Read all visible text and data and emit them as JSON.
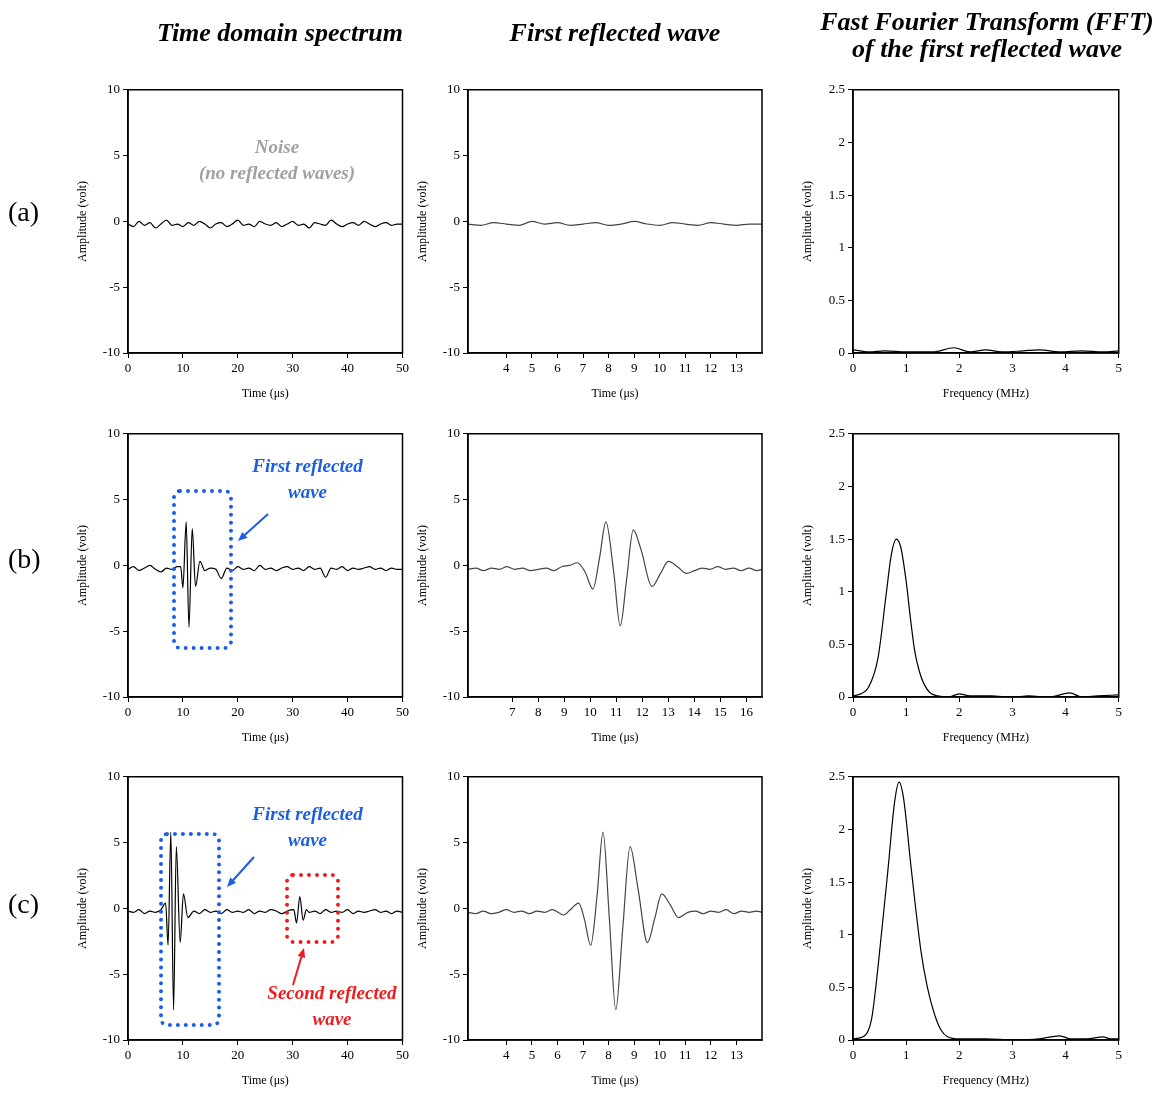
{
  "chart_data": [
    {
      "type": "line",
      "title": "Time domain spectrum",
      "xlabel": "Time (μs)",
      "ylabel": "Amplitude (volt)",
      "color": "#000000",
      "xlim": [
        0,
        50
      ],
      "ylim": [
        -10,
        10
      ],
      "xticks": [
        0,
        10,
        20,
        30,
        40,
        50
      ],
      "yticks": [
        -10,
        -5,
        0,
        5,
        10
      ],
      "annotations": [
        "(a)",
        "Noise",
        "(no reflected waves)"
      ],
      "x": [
        0,
        1,
        2,
        3,
        4,
        5,
        6,
        7,
        8,
        9,
        10,
        11,
        12,
        13,
        14,
        15,
        16,
        17,
        18,
        19,
        20,
        21,
        22,
        23,
        24,
        25,
        26,
        27,
        28,
        29,
        30,
        31,
        32,
        33,
        34,
        35,
        36,
        37,
        38,
        39,
        40,
        41,
        42,
        43,
        44,
        45,
        46,
        47,
        48,
        49,
        50
      ],
      "values": [
        -0.2,
        -0.4,
        0.0,
        -0.3,
        -0.1,
        -0.5,
        -0.2,
        0.1,
        -0.3,
        -0.2,
        -0.4,
        -0.1,
        -0.3,
        0.0,
        -0.2,
        -0.5,
        -0.2,
        -0.1,
        -0.4,
        -0.2,
        0.1,
        -0.3,
        -0.2,
        -0.4,
        0.0,
        -0.2,
        -0.3,
        -0.1,
        -0.4,
        -0.2,
        0.0,
        -0.3,
        -0.2,
        -0.5,
        -0.1,
        -0.2,
        -0.3,
        0.1,
        -0.2,
        -0.4,
        -0.2,
        -0.1,
        -0.3,
        0.0,
        -0.2,
        -0.4,
        -0.2,
        -0.1,
        -0.3,
        -0.2,
        -0.2
      ]
    },
    {
      "type": "line",
      "title": "First reflected wave",
      "xlabel": "Time (μs)",
      "ylabel": "Amplitude (volt)",
      "color": "#444444",
      "xlim": [
        2.5,
        14
      ],
      "ylim": [
        -10,
        10
      ],
      "xticks": [
        4,
        5,
        6,
        7,
        8,
        9,
        10,
        11,
        12,
        13
      ],
      "yticks": [
        -10,
        -5,
        0,
        5,
        10
      ],
      "x": [
        2.5,
        3,
        3.5,
        4,
        4.5,
        5,
        5.5,
        6,
        6.5,
        7,
        7.5,
        8,
        8.5,
        9,
        9.5,
        10,
        10.5,
        11,
        11.5,
        12,
        12.5,
        13,
        13.5,
        14
      ],
      "values": [
        -0.2,
        -0.3,
        -0.1,
        -0.2,
        -0.3,
        0.0,
        -0.2,
        -0.1,
        -0.3,
        -0.2,
        -0.1,
        -0.3,
        -0.2,
        0.0,
        -0.2,
        -0.3,
        -0.1,
        -0.2,
        -0.3,
        -0.1,
        -0.2,
        -0.3,
        -0.2,
        -0.2
      ]
    },
    {
      "type": "line",
      "title": "Fast Fourier Transform (FFT)\nof the first reflected wave",
      "xlabel": "Frequency (MHz)",
      "ylabel": "Amplitude (volt)",
      "color": "#000000",
      "xlim": [
        0,
        5
      ],
      "ylim": [
        0,
        2.5
      ],
      "xticks": [
        0,
        1,
        2,
        3,
        4,
        5
      ],
      "yticks": [
        0,
        0.5,
        1,
        1.5,
        2,
        2.5
      ],
      "x": [
        0,
        0.3,
        0.6,
        1,
        1.5,
        1.9,
        2.2,
        2.5,
        2.8,
        3.2,
        3.5,
        3.9,
        4.3,
        4.7,
        5
      ],
      "values": [
        0.03,
        0.01,
        0.02,
        0.01,
        0.01,
        0.05,
        0.01,
        0.03,
        0.01,
        0.02,
        0.03,
        0.01,
        0.02,
        0.01,
        0.02
      ]
    },
    {
      "type": "line",
      "xlabel": "Time (μs)",
      "ylabel": "Amplitude (volt)",
      "color": "#000000",
      "xlim": [
        0,
        50
      ],
      "ylim": [
        -10,
        10
      ],
      "xticks": [
        0,
        10,
        20,
        30,
        40,
        50
      ],
      "yticks": [
        -10,
        -5,
        0,
        5,
        10
      ],
      "annotations": [
        "(b)",
        "First reflected wave"
      ],
      "x": [
        0,
        1,
        2,
        3,
        4,
        5,
        6,
        7,
        8,
        9,
        9.6,
        10,
        10.6,
        11.1,
        11.7,
        12.3,
        13.1,
        14,
        15,
        16,
        17,
        18,
        19,
        20,
        21,
        22,
        23,
        24,
        25,
        26,
        27,
        28,
        29,
        30,
        31,
        32,
        33,
        34,
        35,
        36,
        37,
        38,
        39,
        40,
        41,
        42,
        43,
        44,
        45,
        46,
        47,
        48,
        49,
        50
      ],
      "values": [
        -0.3,
        -0.1,
        -0.4,
        -0.2,
        0.0,
        -0.3,
        -0.5,
        -0.2,
        -0.3,
        -0.1,
        -0.1,
        -1.7,
        3.3,
        -4.7,
        2.8,
        -1.6,
        0.3,
        -0.4,
        -0.2,
        -0.3,
        -1.0,
        -0.2,
        -0.4,
        -0.1,
        -0.3,
        -0.2,
        -0.4,
        0.0,
        -0.3,
        -0.2,
        -0.4,
        -0.2,
        -0.1,
        -0.3,
        -0.2,
        -0.4,
        -0.1,
        -0.3,
        -0.2,
        -0.9,
        -0.2,
        -0.3,
        -0.1,
        -0.4,
        -0.2,
        -0.3,
        -0.2,
        -0.1,
        -0.3,
        -0.2,
        -0.4,
        -0.2,
        -0.3,
        -0.3
      ]
    },
    {
      "type": "line",
      "xlabel": "Time (μs)",
      "ylabel": "Amplitude (volt)",
      "color": "#444444",
      "xlim": [
        5.3,
        16.6
      ],
      "ylim": [
        -10,
        10
      ],
      "xticks": [
        7,
        8,
        9,
        10,
        11,
        12,
        13,
        14,
        15,
        16
      ],
      "yticks": [
        -10,
        -5,
        0,
        5,
        10
      ],
      "x": [
        5.3,
        5.6,
        5.9,
        6.2,
        6.5,
        6.8,
        7.1,
        7.4,
        7.7,
        8.0,
        8.3,
        8.6,
        8.9,
        9.2,
        9.5,
        9.8,
        10.1,
        10.35,
        10.6,
        10.9,
        11.15,
        11.4,
        11.65,
        11.95,
        12.37,
        12.7,
        13.0,
        13.35,
        13.7,
        14.0,
        14.3,
        14.6,
        14.9,
        15.2,
        15.5,
        15.8,
        16.1,
        16.4,
        16.6
      ],
      "values": [
        -0.3,
        -0.2,
        -0.4,
        -0.2,
        -0.3,
        -0.1,
        -0.3,
        -0.2,
        -0.4,
        -0.3,
        -0.2,
        -0.4,
        -0.1,
        0.0,
        0.2,
        -0.5,
        -1.8,
        0.5,
        3.3,
        -0.5,
        -4.6,
        -1.0,
        2.7,
        1.2,
        -1.6,
        -0.6,
        0.3,
        -0.1,
        -0.6,
        -0.4,
        -0.2,
        -0.3,
        -0.1,
        -0.3,
        -0.2,
        -0.4,
        -0.2,
        -0.4,
        -0.3
      ]
    },
    {
      "type": "line",
      "xlabel": "Frequency (MHz)",
      "ylabel": "Amplitude (volt)",
      "color": "#000000",
      "xlim": [
        0,
        5
      ],
      "ylim": [
        0,
        2.5
      ],
      "xticks": [
        0,
        1,
        2,
        3,
        4,
        5
      ],
      "yticks": [
        0,
        0.5,
        1,
        1.5,
        2,
        2.5
      ],
      "x": [
        0,
        0.15,
        0.29,
        0.47,
        0.63,
        0.72,
        0.815,
        0.9,
        1.0,
        1.08,
        1.16,
        1.25,
        1.34,
        1.45,
        1.59,
        1.8,
        2.0,
        2.2,
        2.6,
        3.0,
        3.3,
        3.7,
        4.08,
        4.3,
        4.6,
        5.0
      ],
      "values": [
        0.01,
        0.03,
        0.09,
        0.37,
        1.0,
        1.35,
        1.5,
        1.42,
        1.1,
        0.75,
        0.44,
        0.24,
        0.12,
        0.04,
        0.01,
        0.0,
        0.03,
        0.01,
        0.01,
        0.0,
        0.01,
        0.0,
        0.04,
        0.0,
        0.01,
        0.02
      ]
    },
    {
      "type": "line",
      "xlabel": "Time (μs)",
      "ylabel": "Amplitude (volt)",
      "color": "#000000",
      "xlim": [
        0,
        50
      ],
      "ylim": [
        -10,
        10
      ],
      "xticks": [
        0,
        10,
        20,
        30,
        40,
        50
      ],
      "yticks": [
        -10,
        -5,
        0,
        5,
        10
      ],
      "annotations": [
        "(c)",
        "First reflected wave",
        "Second reflected wave"
      ],
      "x": [
        0,
        1,
        2,
        3,
        4,
        5,
        6,
        6.85,
        7.3,
        7.8,
        8.3,
        8.8,
        9.5,
        10.1,
        10.9,
        12,
        13,
        14,
        15,
        16,
        17,
        18,
        19,
        20,
        21,
        22,
        23,
        24,
        25,
        26,
        27,
        28,
        29,
        30.2,
        30.7,
        31.3,
        31.9,
        32.5,
        33,
        34,
        35,
        36,
        37,
        38,
        39,
        40,
        41,
        42,
        43,
        44,
        45,
        46,
        47,
        48,
        49,
        50
      ],
      "values": [
        -0.2,
        -0.3,
        -0.1,
        -0.4,
        -0.2,
        -0.3,
        -0.1,
        0.4,
        -2.8,
        5.8,
        -7.7,
        4.7,
        -2.6,
        1.1,
        -0.7,
        -0.2,
        -0.4,
        -0.1,
        -0.3,
        -0.2,
        -0.4,
        -0.1,
        -0.3,
        -0.2,
        -0.3,
        -0.1,
        -0.4,
        -0.2,
        -0.3,
        -0.1,
        -0.2,
        -0.4,
        -0.2,
        -0.1,
        -1.1,
        0.9,
        -0.9,
        -0.1,
        -0.3,
        -0.2,
        -0.4,
        -0.1,
        -0.3,
        -0.2,
        -0.3,
        -0.1,
        -0.4,
        -0.2,
        -0.3,
        -0.2,
        -0.1,
        -0.3,
        -0.2,
        -0.4,
        -0.2,
        -0.3
      ]
    },
    {
      "type": "line",
      "xlabel": "Time (μs)",
      "ylabel": "Amplitude (volt)",
      "color": "#444444",
      "xlim": [
        2.5,
        14
      ],
      "ylim": [
        -10,
        10
      ],
      "xticks": [
        4,
        5,
        6,
        7,
        8,
        9,
        10,
        11,
        12,
        13
      ],
      "yticks": [
        -10,
        -5,
        0,
        5,
        10
      ],
      "x": [
        2.5,
        2.8,
        3.1,
        3.4,
        3.7,
        4.0,
        4.3,
        4.6,
        4.9,
        5.2,
        5.5,
        5.8,
        6.24,
        6.5,
        6.83,
        7.05,
        7.3,
        7.55,
        7.78,
        8.03,
        8.28,
        8.55,
        8.84,
        9.15,
        9.52,
        9.8,
        10.08,
        10.4,
        10.73,
        11.1,
        11.4,
        11.7,
        12.0,
        12.3,
        12.6,
        12.9,
        13.2,
        13.5,
        13.8,
        14.0
      ],
      "values": [
        -0.3,
        -0.4,
        -0.2,
        -0.4,
        -0.3,
        -0.1,
        -0.3,
        -0.2,
        -0.4,
        -0.2,
        -0.3,
        -0.1,
        -0.5,
        -0.1,
        0.4,
        -0.8,
        -2.8,
        1.0,
        5.8,
        -0.8,
        -7.7,
        -1.6,
        4.7,
        1.5,
        -2.6,
        -0.8,
        1.1,
        0.3,
        -0.7,
        -0.3,
        -0.2,
        -0.4,
        -0.2,
        -0.3,
        -0.1,
        -0.4,
        -0.2,
        -0.3,
        -0.2,
        -0.3
      ]
    },
    {
      "type": "line",
      "xlabel": "Frequency (MHz)",
      "ylabel": "Amplitude (volt)",
      "color": "#000000",
      "xlim": [
        0,
        5
      ],
      "ylim": [
        0,
        2.5
      ],
      "xticks": [
        0,
        1,
        2,
        3,
        4,
        5
      ],
      "yticks": [
        0,
        0.5,
        1,
        1.5,
        2,
        2.5
      ],
      "x": [
        0,
        0.22,
        0.35,
        0.47,
        0.66,
        0.78,
        0.865,
        0.95,
        1.095,
        1.28,
        1.4,
        1.53,
        1.65,
        1.78,
        2.0,
        2.5,
        3.0,
        3.5,
        3.89,
        4.1,
        4.4,
        4.7,
        4.85,
        5.0
      ],
      "values": [
        0.01,
        0.04,
        0.2,
        0.69,
        1.63,
        2.25,
        2.45,
        2.3,
        1.63,
        0.84,
        0.5,
        0.25,
        0.1,
        0.03,
        0.01,
        0.01,
        0.0,
        0.01,
        0.04,
        0.01,
        0.01,
        0.03,
        0.01,
        0.01
      ]
    }
  ]
}
